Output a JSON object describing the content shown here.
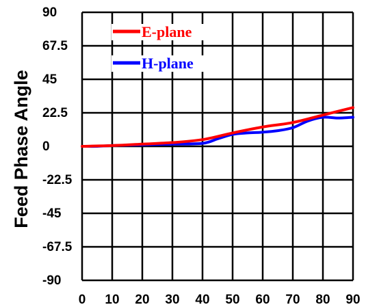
{
  "chart_data": {
    "type": "line",
    "title": "",
    "xlabel": "",
    "ylabel": "Feed Phase Angle",
    "xlim": [
      0,
      90
    ],
    "ylim": [
      -90,
      90
    ],
    "x_ticks": [
      "0",
      "10",
      "20",
      "30",
      "40",
      "50",
      "60",
      "70",
      "80",
      "90"
    ],
    "y_ticks": [
      "90",
      "67.5",
      "45",
      "22.5",
      "0",
      "-22.5",
      "-45",
      "-67.5",
      "-90"
    ],
    "grid": true,
    "legend_position": "top-left",
    "series": [
      {
        "name": "E-plane",
        "color": "#ff0000",
        "x": [
          0,
          10,
          20,
          30,
          40,
          50,
          60,
          70,
          80,
          90
        ],
        "y": [
          0,
          0.5,
          1.5,
          2.5,
          4.5,
          9,
          13,
          16,
          21,
          26
        ]
      },
      {
        "name": "H-plane",
        "color": "#0000ff",
        "x": [
          0,
          5,
          10,
          20,
          30,
          40,
          45,
          50,
          55,
          60,
          65,
          70,
          75,
          80,
          85,
          90
        ],
        "y": [
          0,
          0,
          0.5,
          1,
          1.5,
          2,
          5,
          8,
          9,
          9.5,
          10.5,
          12.5,
          17,
          19.5,
          19,
          19.5
        ]
      }
    ]
  }
}
